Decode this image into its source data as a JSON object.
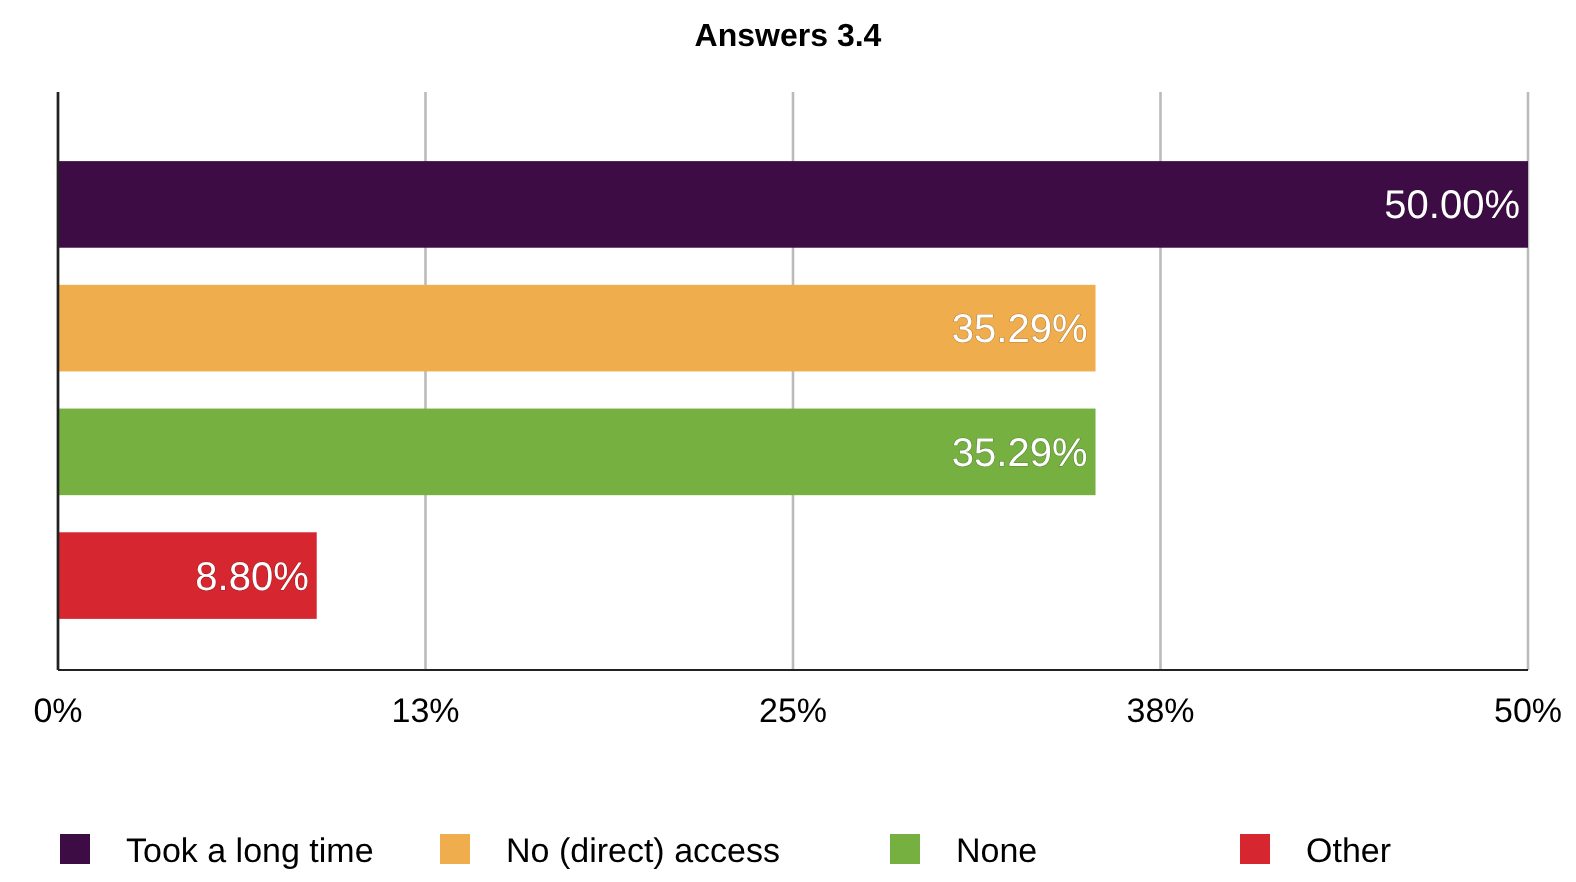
{
  "chart_data": {
    "type": "bar",
    "title": "Answers 3.4",
    "orientation": "horizontal",
    "categories": [
      null,
      null,
      null,
      null
    ],
    "series": [
      {
        "name": "Took a long time",
        "color": "#3d0c45",
        "values": [
          50,
          null,
          null,
          null
        ],
        "value_labels": [
          "50.00%",
          null,
          null,
          null
        ]
      },
      {
        "name": "No (direct) access",
        "color": "#f0ad4e",
        "values": [
          null,
          35.29,
          null,
          null
        ],
        "value_labels": [
          null,
          "35.29%",
          null,
          null
        ]
      },
      {
        "name": "None",
        "color": "#76b041",
        "values": [
          null,
          null,
          35.29,
          null
        ],
        "value_labels": [
          null,
          null,
          "35.29%",
          null
        ]
      },
      {
        "name": "Other",
        "color": "#d6262f",
        "values": [
          null,
          null,
          null,
          8.8
        ],
        "value_labels": [
          null,
          null,
          null,
          "8.80%"
        ]
      }
    ],
    "xlim": [
      0,
      50
    ],
    "xticks": [
      {
        "value": 0,
        "label": "0%"
      },
      {
        "value": 12.5,
        "label": "13%"
      },
      {
        "value": 25,
        "label": "25%"
      },
      {
        "value": 37.5,
        "label": "38%"
      },
      {
        "value": 50,
        "label": "50%"
      }
    ],
    "grid": "x",
    "legend": "bottom"
  }
}
